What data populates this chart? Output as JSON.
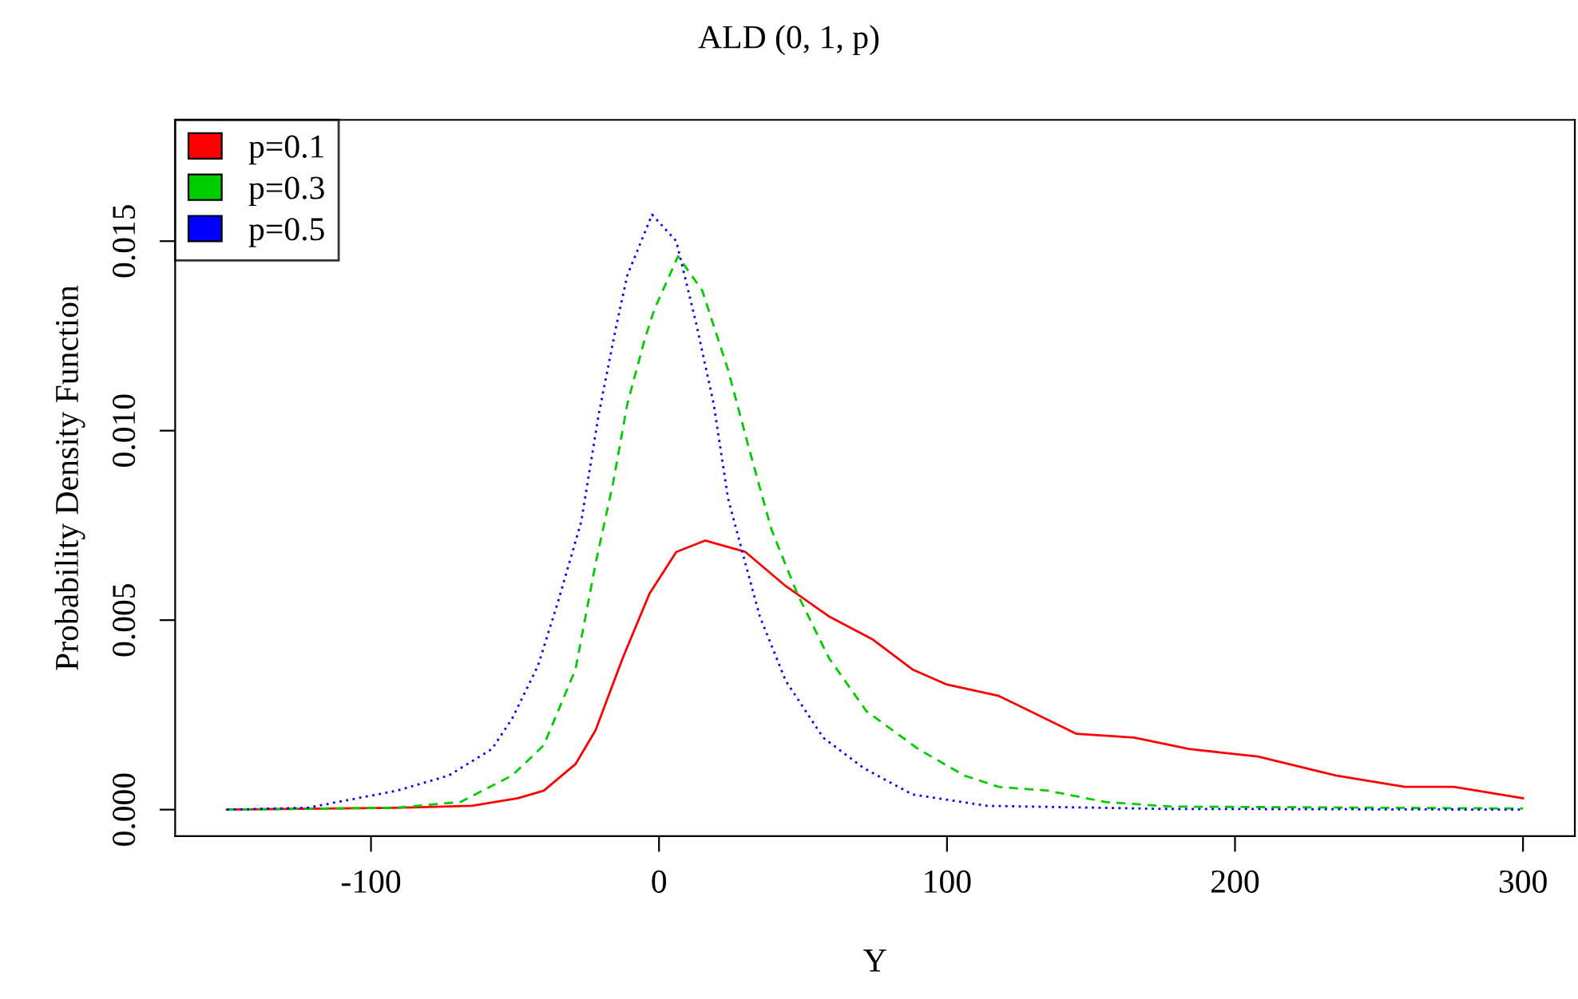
{
  "chart_data": {
    "type": "line",
    "title": "ALD (0, 1, p)",
    "xlabel": "Y",
    "ylabel": "Probability Density Function",
    "xlim": [
      -168,
      318
    ],
    "ylim": [
      -0.0007,
      0.0182
    ],
    "xticks": [
      -100,
      0,
      100,
      200,
      300
    ],
    "yticks": [
      {
        "value": 0,
        "label": "0.000"
      },
      {
        "value": 0.005,
        "label": "0.005"
      },
      {
        "value": 0.01,
        "label": "0.010"
      },
      {
        "value": 0.015,
        "label": "0.015"
      }
    ],
    "grid": false,
    "legend": "top left",
    "marker": "none",
    "series": [
      {
        "name": "p=0.1",
        "color": "#ff0000",
        "line_style": "solid",
        "x": [
          -150,
          -91,
          -65,
          -49,
          -40,
          -29,
          -22,
          -12.6,
          -3.3,
          6,
          16,
          30,
          44,
          59,
          74,
          88,
          100,
          118,
          145,
          165,
          184,
          208,
          235,
          259,
          276,
          300
        ],
        "values": [
          0,
          5e-05,
          0.0001,
          0.0003,
          0.0005,
          0.0012,
          0.0021,
          0.004,
          0.0057,
          0.0068,
          0.0071,
          0.0068,
          0.0059,
          0.0051,
          0.0045,
          0.0037,
          0.0033,
          0.003,
          0.002,
          0.0019,
          0.0016,
          0.0014,
          0.0009,
          0.0006,
          0.0006,
          0.0003
        ]
      },
      {
        "name": "p=0.3",
        "color": "#00cd00",
        "line_style": "dashed",
        "x": [
          -150,
          -91,
          -69,
          -51,
          -40,
          -29,
          -22,
          -16,
          -11,
          -5,
          -1.6,
          6.6,
          15,
          24,
          31,
          39,
          48,
          59,
          72,
          90,
          106,
          118,
          135,
          155,
          178,
          300
        ],
        "values": [
          0,
          5e-05,
          0.0002,
          0.0009,
          0.0017,
          0.0037,
          0.0065,
          0.0086,
          0.0107,
          0.0124,
          0.0132,
          0.0146,
          0.0137,
          0.0116,
          0.0096,
          0.0074,
          0.0057,
          0.004,
          0.0026,
          0.0016,
          0.0009,
          0.0006,
          0.0005,
          0.0002,
          8e-05,
          3e-05
        ]
      },
      {
        "name": "p=0.5",
        "color": "#0000ff",
        "line_style": "dotted",
        "x": [
          -150,
          -122,
          -91,
          -73,
          -58,
          -51,
          -42,
          -35,
          -27,
          -21,
          -15,
          -11,
          -2.4,
          6,
          13,
          19,
          24,
          30,
          35,
          44,
          57,
          71,
          88,
          114,
          175,
          300
        ],
        "values": [
          0,
          5e-05,
          0.0005,
          0.0009,
          0.0016,
          0.0024,
          0.0038,
          0.0055,
          0.0076,
          0.0104,
          0.0127,
          0.0141,
          0.0157,
          0.015,
          0.0128,
          0.0107,
          0.0082,
          0.0065,
          0.0051,
          0.0034,
          0.0019,
          0.0011,
          0.0004,
          0.0001,
          2e-05,
          0
        ]
      }
    ]
  }
}
